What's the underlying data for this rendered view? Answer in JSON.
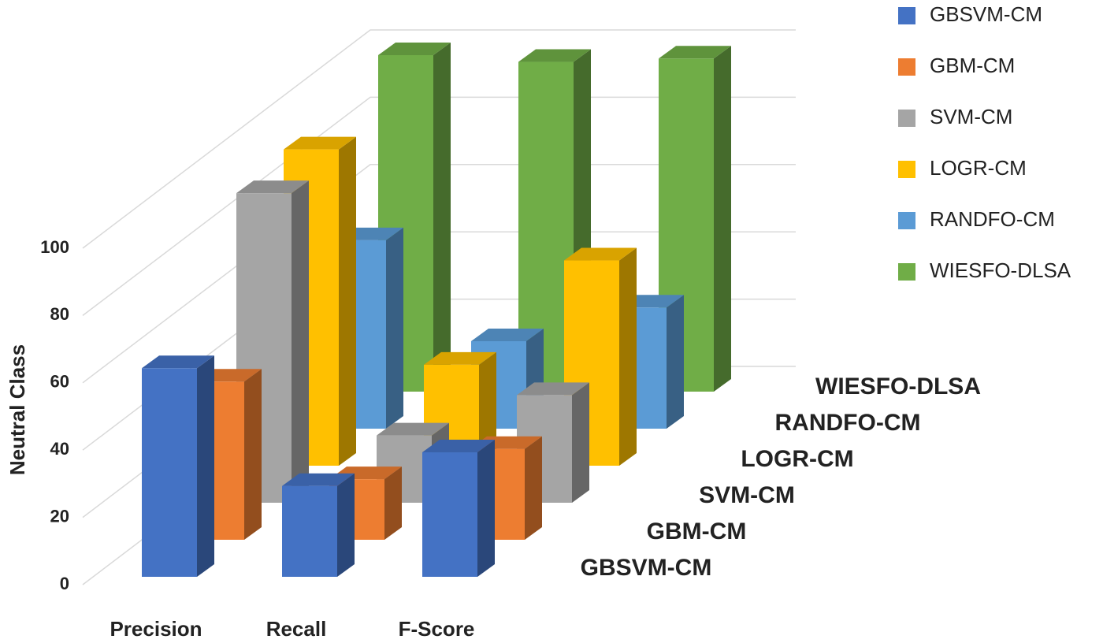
{
  "chart_data": {
    "type": "bar3d",
    "y_label": "Neutral Class",
    "categories": [
      "Precision",
      "Recall",
      "F-Score"
    ],
    "series": [
      {
        "name": "GBSVM-CM",
        "color": "#4472c4",
        "values": [
          62,
          27,
          37
        ]
      },
      {
        "name": "GBM-CM",
        "color": "#ed7d31",
        "values": [
          47,
          18,
          27
        ]
      },
      {
        "name": "SVM-CM",
        "color": "#a5a5a5",
        "values": [
          92,
          20,
          32
        ]
      },
      {
        "name": "LOGR-CM",
        "color": "#ffc000",
        "values": [
          94,
          30,
          61
        ]
      },
      {
        "name": "RANDFO-CM",
        "color": "#5b9bd5",
        "values": [
          56,
          26,
          36
        ]
      },
      {
        "name": "WIESFO-DLSA",
        "color": "#70ad47",
        "values": [
          100,
          98,
          99
        ]
      }
    ],
    "ylim": [
      0,
      100
    ],
    "yticks": [
      0,
      20,
      40,
      60,
      80,
      100
    ],
    "grid": true
  }
}
